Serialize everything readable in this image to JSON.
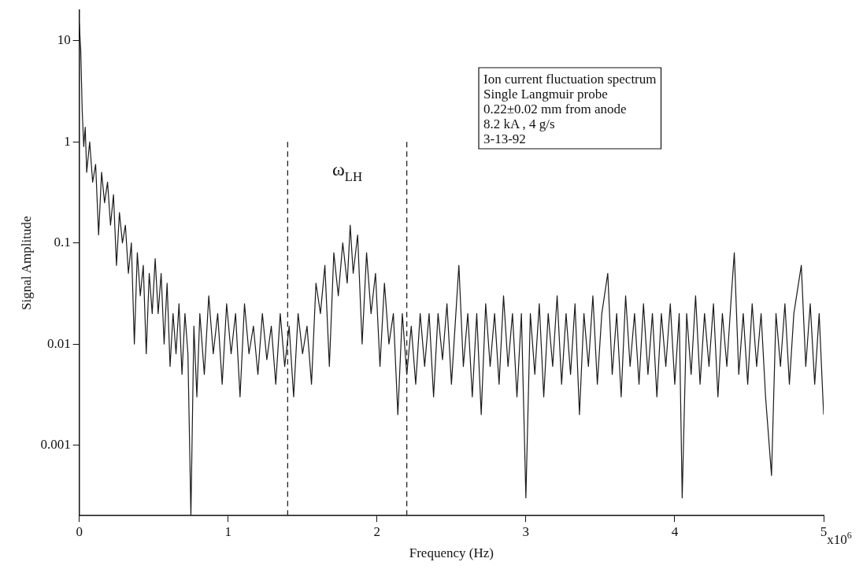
{
  "chart_data": {
    "type": "line",
    "xlabel": "Frequency (Hz)",
    "ylabel": "Signal Amplitude",
    "log": "y",
    "grid": false,
    "legend": false,
    "marker": "none",
    "line_style": "solid",
    "xlim": [
      0,
      5
    ],
    "xticks": [
      0,
      1,
      2,
      3,
      4,
      5
    ],
    "ylim": [
      0.0002,
      20
    ],
    "yticks": [
      0.001,
      0.01,
      0.1,
      1,
      10
    ],
    "ref_lines": [
      {
        "axis": "x",
        "value": 1.4,
        "line_style": "dashed",
        "color": "#222222"
      },
      {
        "axis": "x",
        "value": 2.2,
        "line_style": "dashed",
        "color": "#222222"
      }
    ],
    "annotations": [
      "ω$_{LH}$",
      "x10$^{6}$",
      "Ion current fluctuation spectrum",
      "Single Langmuir probe",
      "0.22±0.02 mm from anode",
      "8.2 kA , 4 g/s",
      "3-13-92"
    ],
    "series": [
      {
        "color": "#1a1a1a",
        "x": [
          0,
          0.01,
          0.02,
          0.03,
          0.04,
          0.05,
          0.07,
          0.09,
          0.11,
          0.13,
          0.15,
          0.17,
          0.19,
          0.21,
          0.23,
          0.25,
          0.27,
          0.29,
          0.31,
          0.33,
          0.35,
          0.37,
          0.39,
          0.41,
          0.43,
          0.45,
          0.47,
          0.49,
          0.51,
          0.53,
          0.55,
          0.57,
          0.59,
          0.61,
          0.63,
          0.65,
          0.67,
          0.69,
          0.71,
          0.73,
          0.75,
          0.77,
          0.79,
          0.81,
          0.84,
          0.87,
          0.9,
          0.93,
          0.96,
          0.99,
          1.02,
          1.05,
          1.08,
          1.11,
          1.14,
          1.17,
          1.2,
          1.23,
          1.26,
          1.29,
          1.32,
          1.35,
          1.38,
          1.41,
          1.44,
          1.47,
          1.5,
          1.53,
          1.56,
          1.59,
          1.62,
          1.65,
          1.68,
          1.71,
          1.74,
          1.77,
          1.8,
          1.82,
          1.84,
          1.87,
          1.9,
          1.93,
          1.96,
          1.99,
          2.02,
          2.05,
          2.08,
          2.11,
          2.14,
          2.17,
          2.2,
          2.23,
          2.26,
          2.29,
          2.32,
          2.35,
          2.38,
          2.41,
          2.44,
          2.47,
          2.5,
          2.55,
          2.58,
          2.61,
          2.64,
          2.67,
          2.7,
          2.73,
          2.76,
          2.79,
          2.82,
          2.85,
          2.88,
          2.91,
          2.94,
          2.97,
          3.0,
          3.03,
          3.06,
          3.09,
          3.12,
          3.15,
          3.18,
          3.21,
          3.24,
          3.27,
          3.3,
          3.33,
          3.36,
          3.39,
          3.42,
          3.45,
          3.48,
          3.51,
          3.55,
          3.58,
          3.61,
          3.64,
          3.67,
          3.7,
          3.73,
          3.76,
          3.79,
          3.82,
          3.85,
          3.88,
          3.91,
          3.94,
          3.97,
          4.0,
          4.03,
          4.05,
          4.08,
          4.11,
          4.14,
          4.17,
          4.2,
          4.23,
          4.26,
          4.29,
          4.32,
          4.35,
          4.38,
          4.4,
          4.43,
          4.46,
          4.49,
          4.52,
          4.55,
          4.58,
          4.61,
          4.65,
          4.68,
          4.71,
          4.74,
          4.77,
          4.8,
          4.85,
          4.88,
          4.91,
          4.94,
          4.97,
          5.0
        ],
        "values": [
          15,
          8,
          2,
          0.9,
          1.4,
          0.5,
          1.0,
          0.4,
          0.6,
          0.12,
          0.5,
          0.25,
          0.4,
          0.15,
          0.3,
          0.06,
          0.2,
          0.1,
          0.15,
          0.05,
          0.1,
          0.01,
          0.08,
          0.03,
          0.06,
          0.008,
          0.05,
          0.02,
          0.07,
          0.02,
          0.05,
          0.01,
          0.04,
          0.006,
          0.02,
          0.008,
          0.025,
          0.005,
          0.02,
          0.008,
          0.0002,
          0.015,
          0.003,
          0.02,
          0.005,
          0.03,
          0.008,
          0.02,
          0.004,
          0.025,
          0.008,
          0.02,
          0.003,
          0.025,
          0.008,
          0.015,
          0.005,
          0.02,
          0.007,
          0.015,
          0.004,
          0.02,
          0.006,
          0.015,
          0.003,
          0.02,
          0.008,
          0.015,
          0.004,
          0.04,
          0.02,
          0.06,
          0.006,
          0.08,
          0.03,
          0.1,
          0.04,
          0.15,
          0.05,
          0.12,
          0.01,
          0.08,
          0.02,
          0.05,
          0.006,
          0.04,
          0.01,
          0.02,
          0.002,
          0.02,
          0.005,
          0.015,
          0.004,
          0.02,
          0.006,
          0.02,
          0.003,
          0.02,
          0.007,
          0.025,
          0.004,
          0.06,
          0.006,
          0.02,
          0.003,
          0.02,
          0.002,
          0.025,
          0.006,
          0.02,
          0.004,
          0.03,
          0.006,
          0.02,
          0.003,
          0.02,
          0.0003,
          0.02,
          0.005,
          0.025,
          0.003,
          0.02,
          0.006,
          0.03,
          0.004,
          0.02,
          0.005,
          0.025,
          0.002,
          0.02,
          0.006,
          0.03,
          0.004,
          0.02,
          0.05,
          0.005,
          0.02,
          0.003,
          0.03,
          0.006,
          0.02,
          0.004,
          0.025,
          0.005,
          0.02,
          0.003,
          0.02,
          0.006,
          0.025,
          0.004,
          0.02,
          0.0003,
          0.02,
          0.005,
          0.03,
          0.004,
          0.02,
          0.006,
          0.025,
          0.003,
          0.02,
          0.006,
          0.03,
          0.08,
          0.005,
          0.02,
          0.004,
          0.025,
          0.006,
          0.02,
          0.003,
          0.0005,
          0.02,
          0.006,
          0.025,
          0.004,
          0.02,
          0.06,
          0.006,
          0.025,
          0.004,
          0.02,
          0.002
        ]
      }
    ]
  }
}
